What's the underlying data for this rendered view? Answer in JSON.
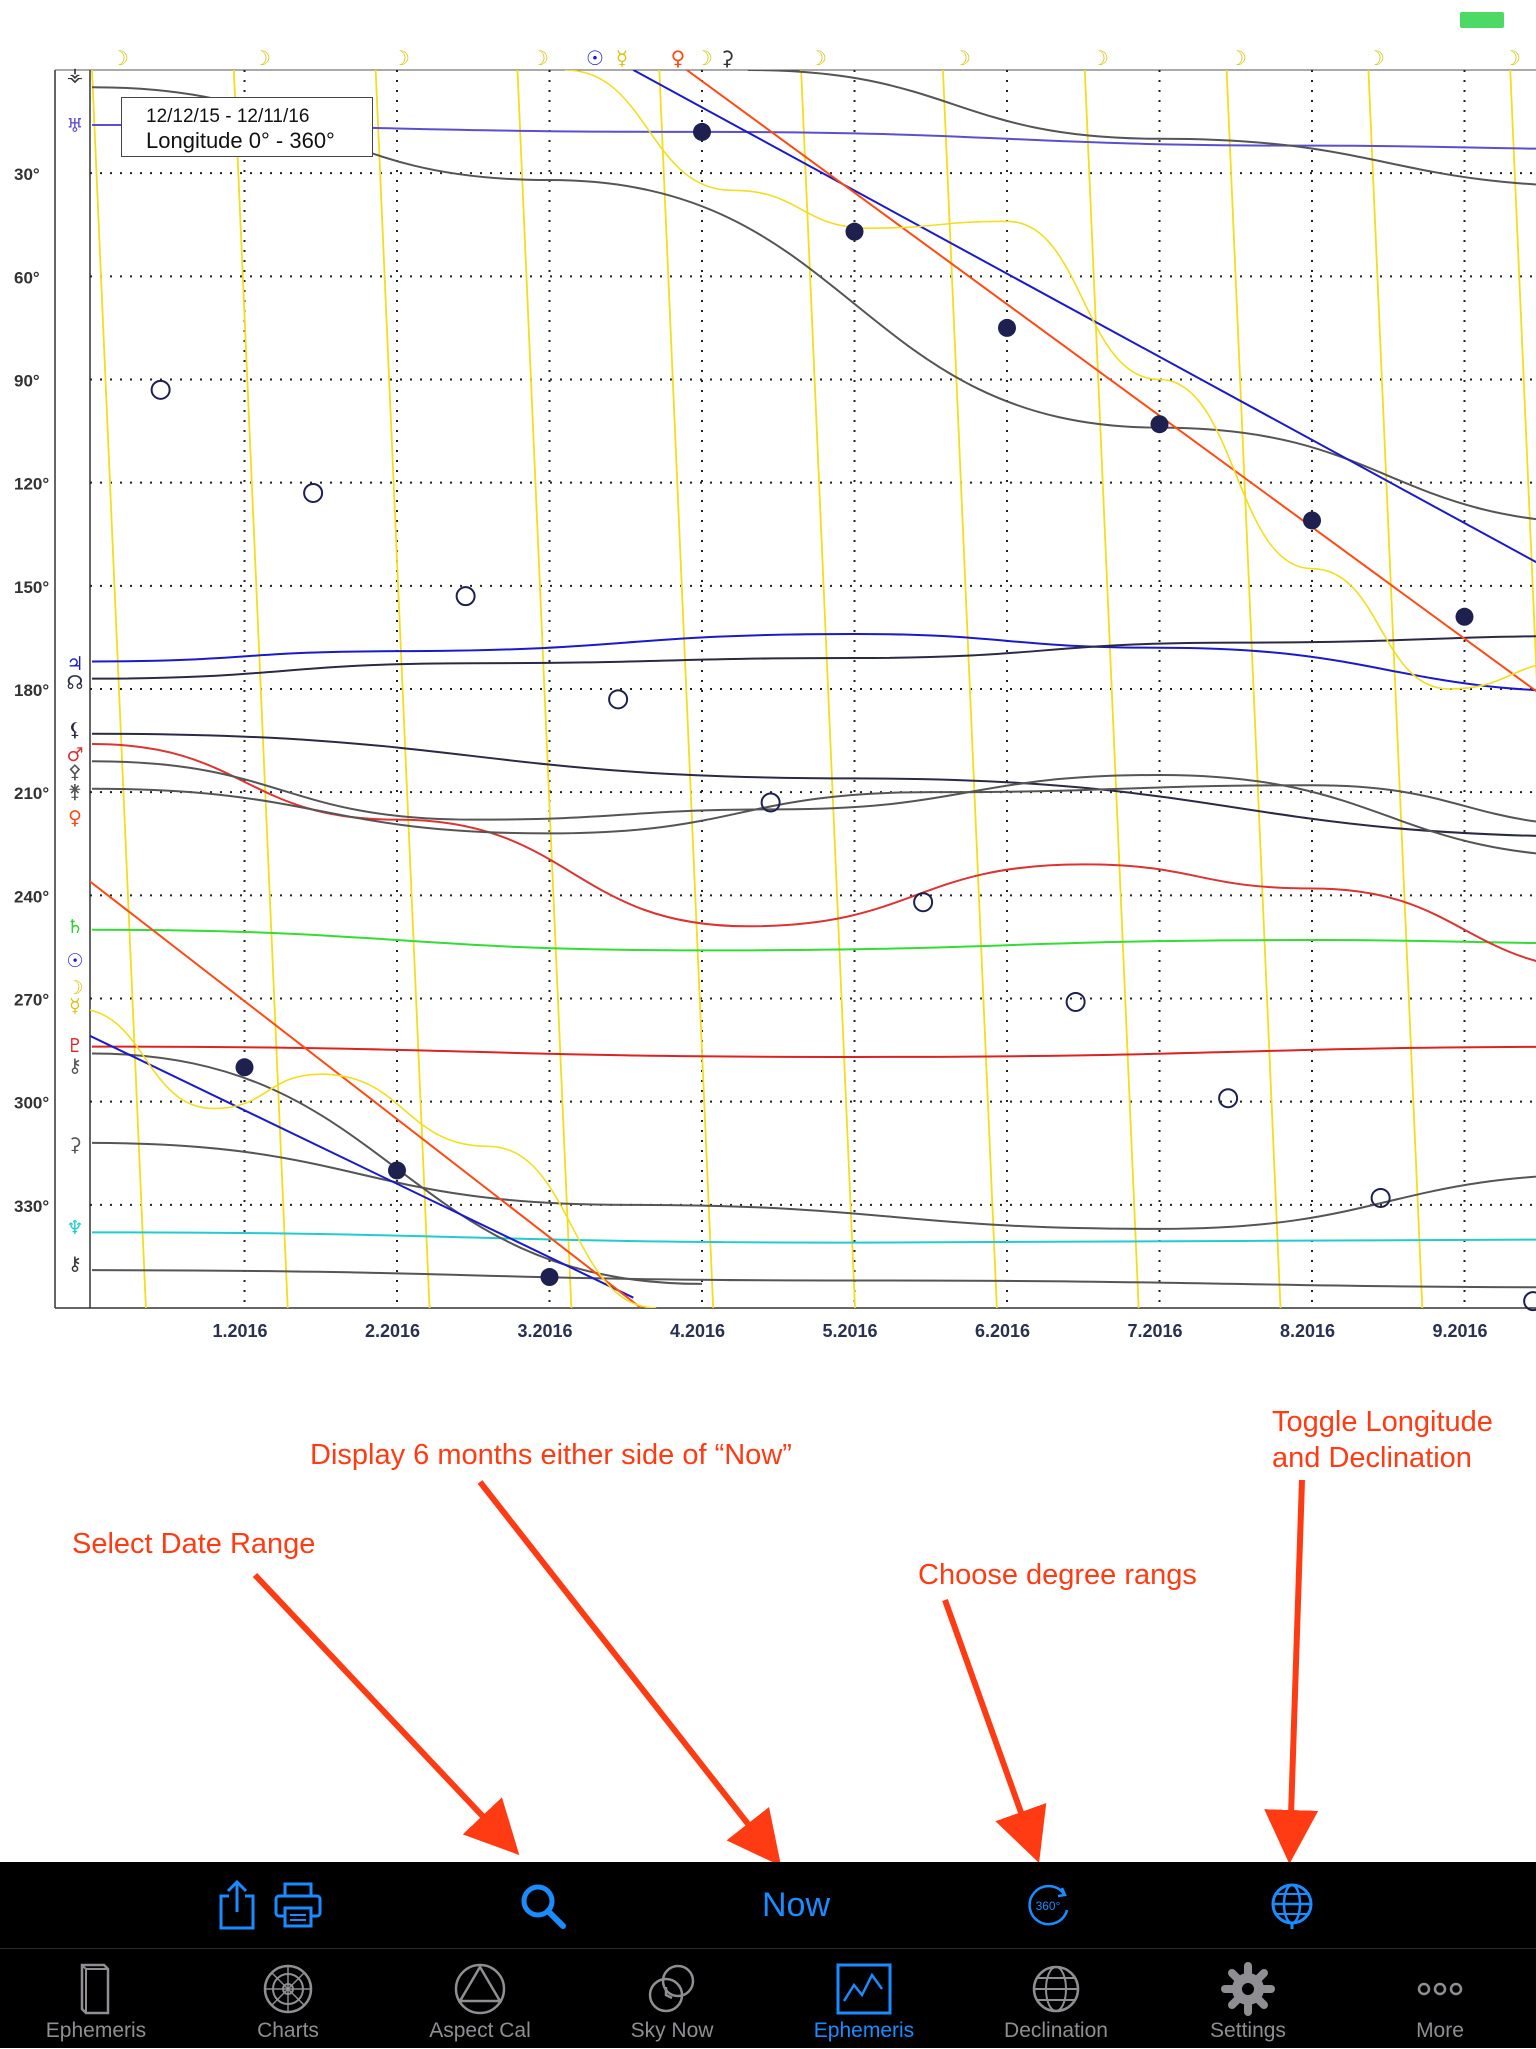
{
  "status_bar": {
    "battery_color": "#4cd964"
  },
  "legend": {
    "date_range": "12/12/15 - 12/11/16",
    "mode": "Longitude  0° - 360°"
  },
  "chart_data": {
    "type": "line",
    "title": "",
    "xlabel": "",
    "ylabel": "",
    "x_tick_labels": [
      "1.2016",
      "2.2016",
      "3.2016",
      "4.2016",
      "5.2016",
      "6.2016",
      "7.2016",
      "8.2016",
      "9.2016"
    ],
    "y_tick_labels": [
      "30°",
      "60°",
      "90°",
      "120°",
      "150°",
      "180°",
      "210°",
      "240°",
      "270°",
      "300°",
      "330°"
    ],
    "y_ticks": [
      30,
      60,
      90,
      120,
      150,
      180,
      210,
      240,
      270,
      300,
      330
    ],
    "xlim": [
      0,
      10
    ],
    "ylim": [
      0,
      360
    ],
    "y_inverted": true,
    "grid": true,
    "series": [
      {
        "symbol": "♅",
        "icon": "uranus-glyph",
        "color": "#5b4fcf",
        "points": [
          [
            0,
            16
          ],
          [
            4,
            18
          ],
          [
            8,
            22
          ],
          [
            10,
            23
          ]
        ]
      },
      {
        "symbol": "♃",
        "icon": "jupiter-glyph",
        "color": "#1a1acc",
        "points": [
          [
            0,
            172
          ],
          [
            2,
            169
          ],
          [
            5,
            164
          ],
          [
            7,
            168
          ],
          [
            10,
            181
          ]
        ]
      },
      {
        "symbol": "☊",
        "icon": "north-node-glyph",
        "color": "#2a2a44",
        "points": [
          [
            0,
            177
          ],
          [
            2.5,
            172.5
          ],
          [
            5,
            171
          ],
          [
            7.5,
            166.5
          ],
          [
            10,
            164.5
          ]
        ]
      },
      {
        "symbol": "⚸",
        "icon": "lilith-glyph",
        "color": "#2a2a44",
        "points": [
          [
            0,
            193
          ],
          [
            5,
            206
          ],
          [
            10,
            223
          ]
        ]
      },
      {
        "symbol": "⚷",
        "icon": "chiron-glyph",
        "color": "#555555",
        "points": [
          [
            0,
            349
          ],
          [
            5,
            352
          ],
          [
            10,
            354
          ]
        ]
      },
      {
        "symbol": "♆",
        "icon": "neptune-glyph",
        "color": "#22cccc",
        "points": [
          [
            0,
            338
          ],
          [
            5,
            341
          ],
          [
            10,
            340
          ]
        ]
      },
      {
        "symbol": "♇",
        "icon": "pluto-glyph",
        "color": "#dd2222",
        "points": [
          [
            0,
            284
          ],
          [
            5,
            287
          ],
          [
            10,
            284
          ]
        ]
      },
      {
        "symbol": "♄",
        "icon": "saturn-glyph",
        "color": "#33dd33",
        "points": [
          [
            0,
            250
          ],
          [
            4,
            256
          ],
          [
            8,
            253
          ],
          [
            10,
            254
          ]
        ]
      },
      {
        "symbol": "♂",
        "icon": "mars-glyph",
        "color": "#dd3333",
        "points": [
          [
            0,
            196
          ],
          [
            2,
            218
          ],
          [
            4.3,
            249
          ],
          [
            6.5,
            231
          ],
          [
            8,
            238
          ],
          [
            10,
            262
          ]
        ]
      },
      {
        "symbol": "⚴",
        "icon": "pallas-glyph",
        "color": "#555555",
        "points": [
          [
            0,
            201
          ],
          [
            2.5,
            218
          ],
          [
            4.5,
            215
          ],
          [
            7,
            205
          ],
          [
            10,
            229
          ]
        ]
      },
      {
        "symbol": "⚵",
        "icon": "juno-glyph",
        "color": "#555555",
        "points": [
          [
            0,
            209
          ],
          [
            3,
            222
          ],
          [
            5.5,
            210
          ],
          [
            8,
            208
          ],
          [
            10,
            220
          ]
        ]
      },
      {
        "symbol": "⚳",
        "icon": "ceres-glyph",
        "color": "#555555",
        "points": [
          [
            0,
            312
          ],
          [
            3.5,
            330
          ],
          [
            7,
            337
          ],
          [
            10,
            321
          ]
        ]
      },
      {
        "symbol": "⚶",
        "icon": "vesta-glyph",
        "color": "#555555",
        "points": [
          [
            0,
            286
          ],
          [
            4,
            353
          ],
          [
            4,
            353
          ]
        ]
      },
      {
        "symbol": "⚶",
        "icon": "vesta-glyph",
        "color": "#555555",
        "points": [
          [
            4.3,
            0
          ],
          [
            7,
            20
          ],
          [
            10,
            34
          ]
        ]
      },
      {
        "symbol": "⚳",
        "icon": "ceres-glyph",
        "color": "#555555",
        "points": [
          [
            0,
            5
          ],
          [
            3,
            32
          ],
          [
            7,
            104
          ],
          [
            10,
            132
          ]
        ]
      }
    ],
    "sun": {
      "symbol": "☉",
      "color": "#1a1acc",
      "dots": [
        [
          1.0,
          290
        ],
        [
          2.0,
          320
        ],
        [
          3.0,
          351
        ],
        [
          4.0,
          18
        ],
        [
          5.0,
          47
        ],
        [
          6.0,
          75
        ],
        [
          7.0,
          103
        ],
        [
          8.0,
          131
        ],
        [
          9.0,
          159
        ]
      ]
    },
    "moon": {
      "symbol": "☽",
      "color": "#f2de1e",
      "circles": [
        [
          0.45,
          93
        ],
        [
          1.45,
          123
        ],
        [
          2.45,
          153
        ],
        [
          3.45,
          183
        ],
        [
          4.45,
          213
        ],
        [
          5.45,
          242
        ],
        [
          6.45,
          271
        ],
        [
          7.45,
          299
        ],
        [
          8.45,
          328
        ],
        [
          9.45,
          358
        ]
      ]
    },
    "top_glyphs": [
      "☽",
      "☽",
      "☽",
      "☽",
      "☉",
      "☿",
      "♀",
      "☽",
      "⚳",
      "☽",
      "☽",
      "☽",
      "☽",
      "☽",
      "☽"
    ],
    "left_glyphs": [
      "⚶",
      "♅",
      "♃",
      "☊",
      "⚸",
      "♂",
      "⚴",
      "⚵",
      "♀",
      "♄",
      "☉",
      "☽",
      "☿",
      "♇",
      "⚷",
      "⚳",
      "♆",
      "⚷"
    ]
  },
  "annotations": {
    "select_date": "Select Date Range",
    "display_now": "Display 6 months either side of “Now”",
    "degree": "Choose degree rangs",
    "toggle": "Toggle Longitude\nand Declination",
    "color": "#ff3b14"
  },
  "toolbar": {
    "now_label": "Now",
    "degree_icon_text": "360°",
    "accent": "#1a8cff"
  },
  "tabs": [
    {
      "label": "Ephemeris",
      "icon": "book-icon",
      "active": false
    },
    {
      "label": "Charts",
      "icon": "wheel-icon",
      "active": false
    },
    {
      "label": "Aspect Cal",
      "icon": "triangle-icon",
      "active": false
    },
    {
      "label": "Sky Now",
      "icon": "sky-now-icon",
      "active": false
    },
    {
      "label": "Ephemeris",
      "icon": "graph-icon",
      "active": true
    },
    {
      "label": "Declination",
      "icon": "globe-icon",
      "active": false
    },
    {
      "label": "Settings",
      "icon": "gear-icon",
      "active": false
    },
    {
      "label": "More",
      "icon": "more-icon",
      "active": false
    }
  ]
}
